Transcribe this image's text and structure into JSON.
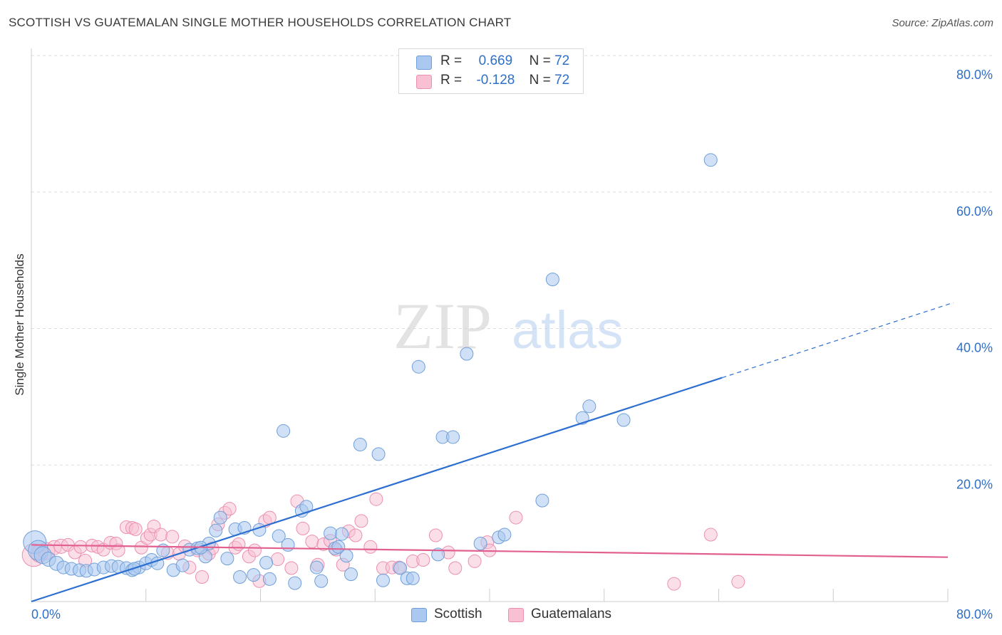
{
  "title": "SCOTTISH VS GUATEMALAN SINGLE MOTHER HOUSEHOLDS CORRELATION CHART",
  "source": "Source: ZipAtlas.com",
  "watermark": {
    "zip": "ZIP",
    "atlas": "atlas"
  },
  "legend": {
    "r_label": "R =",
    "n_label": "N =",
    "scottish": {
      "r": "0.669",
      "n": "72"
    },
    "guatemalans": {
      "r": "-0.128",
      "n": "72"
    }
  },
  "colors": {
    "scottish_fill": "#aac8f0",
    "scottish_stroke": "#6f9fd8",
    "scottish_line": "#2d6fd1",
    "guatemalan_fill": "#f8c0d2",
    "guatemalan_stroke": "#ec8fb0",
    "guatemalan_line": "#e2608f",
    "grid": "#dddddd",
    "tick_label": "#2f6fc7"
  },
  "chart_data": {
    "type": "scatter",
    "title": "SCOTTISH VS GUATEMALAN SINGLE MOTHER HOUSEHOLDS CORRELATION CHART",
    "xlabel": "",
    "ylabel": "Single Mother Households",
    "xlim": [
      0,
      80
    ],
    "ylim": [
      0,
      80
    ],
    "x_tick_labels": [
      "0.0%",
      "80.0%"
    ],
    "y_ticks": [
      20,
      40,
      60,
      80
    ],
    "y_tick_labels": [
      "20.0%",
      "40.0%",
      "60.0%",
      "80.0%"
    ],
    "grid": true,
    "legend_position": "bottom",
    "series": [
      {
        "name": "Scottish",
        "r": 0.669,
        "n": 72,
        "trend": {
          "x0": 0,
          "y0": 0.0,
          "x1": 60.3,
          "y1": 32.8,
          "dashed_to_x": 80.5,
          "dashed_to_y": 43.8
        },
        "points": [
          [
            0.3,
            8.7,
            16
          ],
          [
            0.6,
            7.5,
            14
          ],
          [
            1.0,
            6.8,
            12
          ],
          [
            1.5,
            6.2,
            10
          ],
          [
            2.2,
            5.6,
            10
          ],
          [
            2.8,
            5.0,
            9
          ],
          [
            3.5,
            4.8,
            9
          ],
          [
            4.2,
            4.6,
            9
          ],
          [
            4.8,
            4.5,
            9
          ],
          [
            5.5,
            4.7,
            9
          ],
          [
            6.3,
            5.0,
            9
          ],
          [
            7.0,
            5.2,
            9
          ],
          [
            7.6,
            5.1,
            9
          ],
          [
            8.3,
            4.9,
            9
          ],
          [
            8.8,
            4.6,
            9
          ],
          [
            9.4,
            5.0,
            9
          ],
          [
            10.0,
            5.6,
            9
          ],
          [
            10.5,
            6.1,
            9
          ],
          [
            11.0,
            5.6,
            9
          ],
          [
            11.5,
            7.5,
            9
          ],
          [
            12.4,
            4.6,
            9
          ],
          [
            13.2,
            5.3,
            9
          ],
          [
            13.8,
            7.6,
            9
          ],
          [
            14.5,
            7.8,
            9
          ],
          [
            15.2,
            6.6,
            9
          ],
          [
            15.5,
            8.5,
            9
          ],
          [
            16.1,
            10.4,
            9
          ],
          [
            16.5,
            12.3,
            9
          ],
          [
            17.1,
            6.3,
            9
          ],
          [
            17.8,
            10.6,
            9
          ],
          [
            18.2,
            3.6,
            9
          ],
          [
            18.6,
            10.8,
            9
          ],
          [
            19.4,
            3.9,
            9
          ],
          [
            19.9,
            10.5,
            9
          ],
          [
            20.5,
            5.7,
            9
          ],
          [
            20.8,
            3.3,
            9
          ],
          [
            21.6,
            9.6,
            9
          ],
          [
            22.0,
            25.0,
            9
          ],
          [
            22.4,
            8.3,
            9
          ],
          [
            23.0,
            2.7,
            9
          ],
          [
            23.6,
            13.3,
            9
          ],
          [
            24.0,
            13.9,
            9
          ],
          [
            24.9,
            5.0,
            9
          ],
          [
            25.3,
            3.0,
            9
          ],
          [
            26.1,
            10.0,
            9
          ],
          [
            26.5,
            7.8,
            9
          ],
          [
            27.1,
            9.9,
            9
          ],
          [
            27.5,
            6.7,
            9
          ],
          [
            27.9,
            4.0,
            9
          ],
          [
            28.7,
            23.0,
            9
          ],
          [
            30.3,
            21.6,
            9
          ],
          [
            30.7,
            3.1,
            9
          ],
          [
            32.2,
            4.9,
            9
          ],
          [
            32.8,
            3.4,
            9
          ],
          [
            33.3,
            3.4,
            9
          ],
          [
            33.8,
            34.4,
            9
          ],
          [
            35.5,
            6.9,
            9
          ],
          [
            35.9,
            24.1,
            9
          ],
          [
            36.8,
            24.1,
            9
          ],
          [
            38.0,
            36.3,
            9
          ],
          [
            39.2,
            8.5,
            9
          ],
          [
            40.8,
            9.4,
            9
          ],
          [
            41.3,
            9.8,
            9
          ],
          [
            44.6,
            14.8,
            9
          ],
          [
            45.5,
            47.2,
            9
          ],
          [
            48.1,
            26.9,
            9
          ],
          [
            48.7,
            28.6,
            9
          ],
          [
            51.7,
            26.6,
            9
          ],
          [
            59.3,
            64.7,
            9
          ],
          [
            26.8,
            8.0,
            9
          ],
          [
            14.8,
            7.9,
            9
          ],
          [
            9.0,
            4.8,
            9
          ]
        ]
      },
      {
        "name": "Guatemalans",
        "r": -0.128,
        "n": 72,
        "trend": {
          "x0": 0,
          "y0": 8.3,
          "x1": 80,
          "y1": 6.5
        },
        "points": [
          [
            0.2,
            6.8,
            16
          ],
          [
            0.7,
            7.0,
            12
          ],
          [
            1.3,
            7.4,
            12
          ],
          [
            2.0,
            7.9,
            10
          ],
          [
            2.6,
            8.1,
            10
          ],
          [
            3.2,
            8.3,
            9
          ],
          [
            3.8,
            7.2,
            9
          ],
          [
            4.3,
            8.0,
            9
          ],
          [
            4.7,
            6.0,
            9
          ],
          [
            5.3,
            8.2,
            9
          ],
          [
            5.8,
            8.0,
            9
          ],
          [
            6.3,
            7.6,
            9
          ],
          [
            6.9,
            8.6,
            9
          ],
          [
            7.4,
            8.5,
            9
          ],
          [
            7.6,
            7.5,
            9
          ],
          [
            8.3,
            10.9,
            9
          ],
          [
            8.8,
            10.8,
            9
          ],
          [
            9.1,
            10.6,
            9
          ],
          [
            9.6,
            7.9,
            9
          ],
          [
            10.1,
            9.3,
            9
          ],
          [
            10.4,
            9.8,
            9
          ],
          [
            10.7,
            11.0,
            9
          ],
          [
            11.3,
            9.8,
            9
          ],
          [
            11.9,
            7.1,
            9
          ],
          [
            12.3,
            9.5,
            9
          ],
          [
            12.9,
            7.0,
            9
          ],
          [
            13.4,
            8.1,
            9
          ],
          [
            13.8,
            5.0,
            9
          ],
          [
            14.5,
            7.5,
            9
          ],
          [
            14.9,
            3.6,
            9
          ],
          [
            15.5,
            7.0,
            9
          ],
          [
            15.8,
            7.8,
            9
          ],
          [
            16.3,
            11.3,
            9
          ],
          [
            16.9,
            13.0,
            9
          ],
          [
            17.3,
            13.6,
            9
          ],
          [
            17.8,
            7.9,
            9
          ],
          [
            18.1,
            8.4,
            9
          ],
          [
            19.0,
            6.6,
            9
          ],
          [
            19.5,
            7.5,
            9
          ],
          [
            19.9,
            3.0,
            9
          ],
          [
            20.4,
            11.8,
            9
          ],
          [
            20.8,
            12.3,
            9
          ],
          [
            21.5,
            6.2,
            9
          ],
          [
            22.7,
            4.9,
            9
          ],
          [
            23.2,
            14.7,
            9
          ],
          [
            23.7,
            10.7,
            9
          ],
          [
            24.5,
            8.8,
            9
          ],
          [
            25.0,
            5.4,
            9
          ],
          [
            25.5,
            8.4,
            9
          ],
          [
            26.1,
            8.9,
            9
          ],
          [
            26.6,
            7.6,
            9
          ],
          [
            27.2,
            5.4,
            9
          ],
          [
            27.7,
            10.3,
            9
          ],
          [
            28.3,
            9.7,
            9
          ],
          [
            28.8,
            11.8,
            9
          ],
          [
            29.6,
            8.0,
            9
          ],
          [
            30.1,
            15.0,
            9
          ],
          [
            30.7,
            4.9,
            9
          ],
          [
            31.5,
            5.0,
            9
          ],
          [
            32.1,
            5.0,
            9
          ],
          [
            33.3,
            5.9,
            9
          ],
          [
            34.2,
            6.1,
            9
          ],
          [
            35.3,
            9.7,
            9
          ],
          [
            36.4,
            7.2,
            9
          ],
          [
            37.0,
            4.9,
            9
          ],
          [
            38.7,
            5.9,
            9
          ],
          [
            39.8,
            8.7,
            9
          ],
          [
            40.0,
            7.5,
            9
          ],
          [
            42.3,
            12.3,
            9
          ],
          [
            56.1,
            2.6,
            9
          ],
          [
            59.3,
            9.8,
            9
          ],
          [
            61.7,
            2.9,
            9
          ]
        ]
      }
    ]
  }
}
